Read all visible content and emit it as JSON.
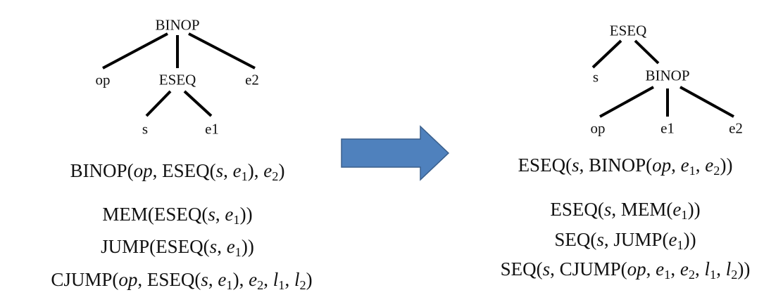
{
  "left": {
    "tree": {
      "root": "BINOP",
      "op": "op",
      "eseq": "ESEQ",
      "e2": "e2",
      "s": "s",
      "e1": "e1"
    },
    "formulas": [
      "BINOP(op, ESEQ(s, e1), e2)",
      "MEM(ESEQ(s, e1))",
      "JUMP(ESEQ(s, e1))",
      "CJUMP(op, ESEQ(s, e1), e2, l1, l2)"
    ]
  },
  "right": {
    "tree": {
      "root": "ESEQ",
      "s": "s",
      "binop": "BINOP",
      "op": "op",
      "e1": "e1",
      "e2": "e2"
    },
    "formulas": [
      "ESEQ(s, BINOP(op, e1, e2))",
      "ESEQ(s, MEM(e1))",
      "SEQ(s, JUMP(e1))",
      "SEQ(s, CJUMP(op, e1, e2, l1, l2))"
    ]
  },
  "colors": {
    "arrow_fill": "#4f81bd",
    "arrow_stroke": "#3a5f8c",
    "line": "#000000"
  },
  "icons": {
    "arrow": "right-arrow-icon"
  }
}
